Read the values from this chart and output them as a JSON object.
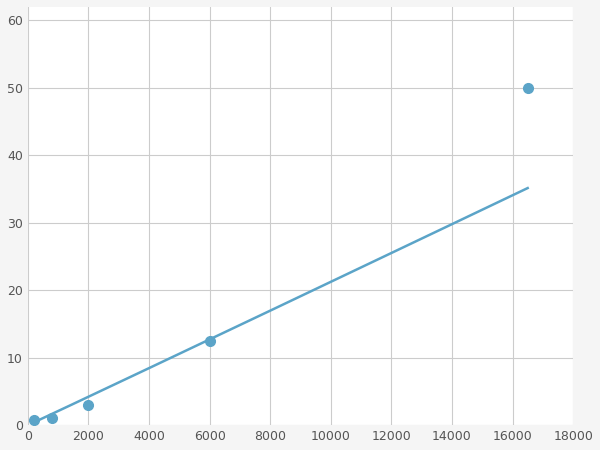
{
  "x_data": [
    200,
    800,
    2000,
    6000,
    16500
  ],
  "y_data": [
    0.7,
    1.0,
    3.0,
    12.5,
    50.0
  ],
  "line_color": "#5BA4C8",
  "marker_color": "#5BA4C8",
  "marker_size": 7,
  "line_width": 1.8,
  "xlim": [
    0,
    18000
  ],
  "ylim": [
    0,
    62
  ],
  "xticks": [
    0,
    2000,
    4000,
    6000,
    8000,
    10000,
    12000,
    14000,
    16000,
    18000
  ],
  "yticks": [
    0,
    10,
    20,
    30,
    40,
    50,
    60
  ],
  "grid_color": "#cccccc",
  "bg_color": "#ffffff",
  "fig_bg_color": "#f5f5f5",
  "figsize": [
    6.0,
    4.5
  ],
  "dpi": 100
}
